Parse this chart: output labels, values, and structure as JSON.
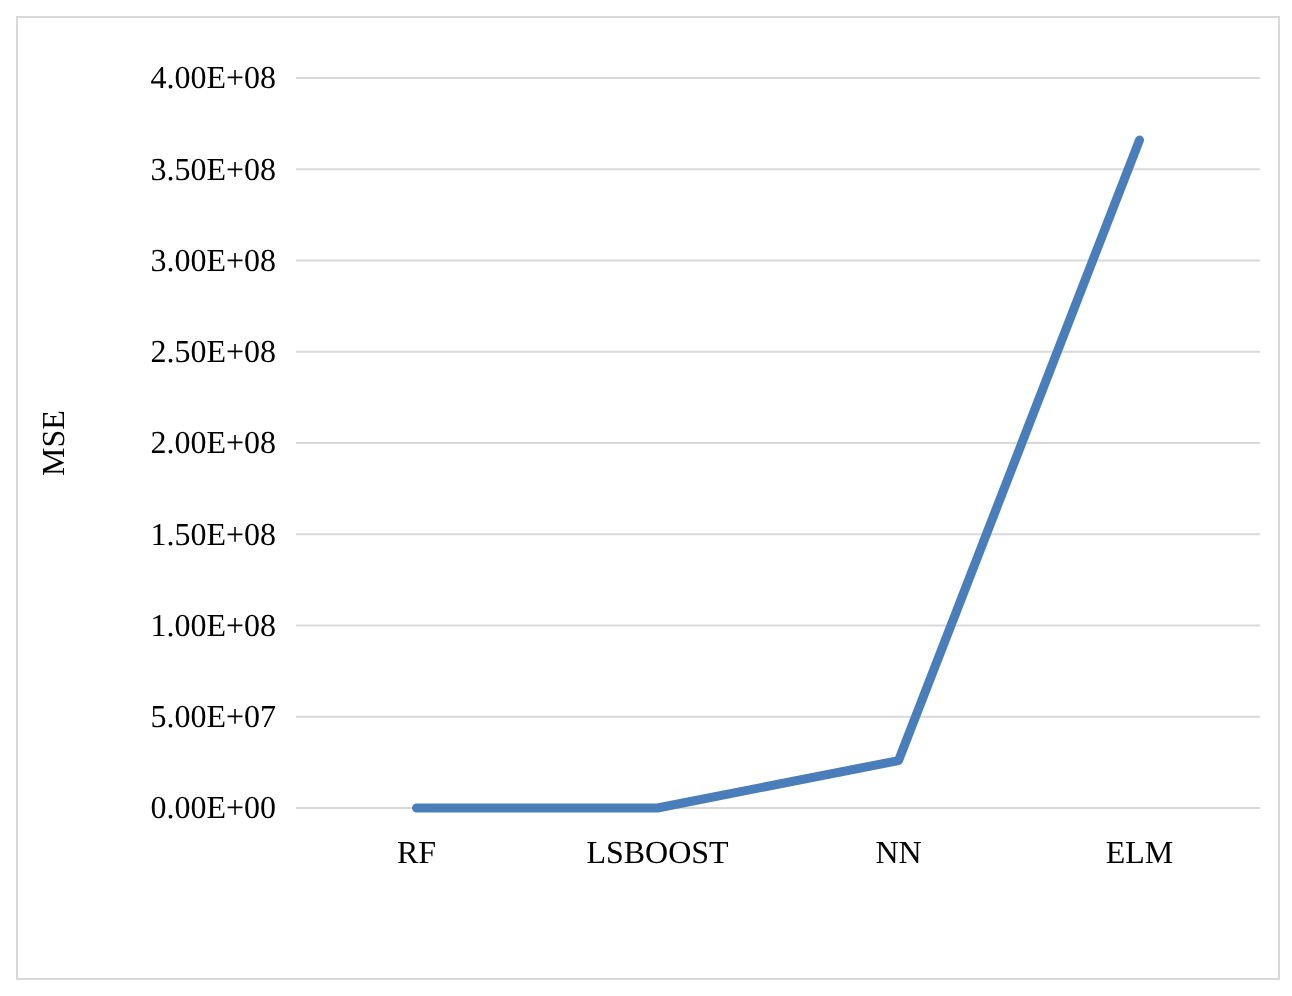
{
  "chart_data": {
    "type": "line",
    "ylabel": "MSE",
    "categories": [
      "RF",
      "LSBOOST",
      "NN",
      "ELM"
    ],
    "series": [
      {
        "color": "#4a7ebb",
        "values": [
          0,
          0,
          26000000.0,
          366000000.0
        ]
      }
    ],
    "ylim": [
      0,
      400000000.0
    ],
    "yticks": [
      {
        "value": 0,
        "label": "0.00E+00"
      },
      {
        "value": 50000000.0,
        "label": "5.00E+07"
      },
      {
        "value": 100000000.0,
        "label": "1.00E+08"
      },
      {
        "value": 150000000.0,
        "label": "1.50E+08"
      },
      {
        "value": 200000000.0,
        "label": "2.00E+08"
      },
      {
        "value": 250000000.0,
        "label": "2.50E+08"
      },
      {
        "value": 300000000.0,
        "label": "3.00E+08"
      },
      {
        "value": 350000000.0,
        "label": "3.50E+08"
      },
      {
        "value": 400000000.0,
        "label": "4.00E+08"
      }
    ],
    "grid": "y",
    "marker": "none",
    "line_style": "solid"
  }
}
